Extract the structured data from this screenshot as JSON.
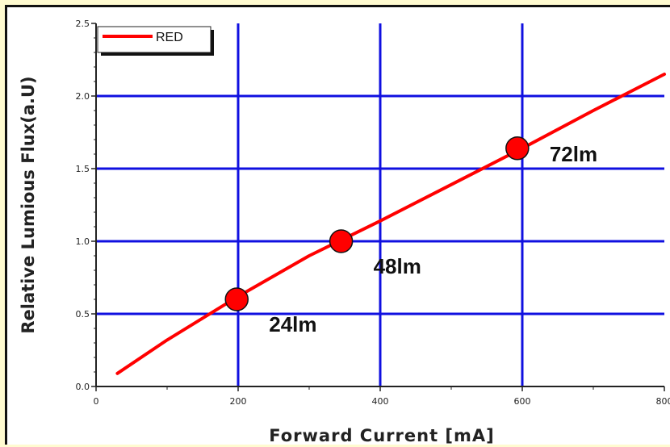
{
  "chart_data": {
    "type": "line",
    "xlabel": "Forward Current [mA]",
    "ylabel": "Relative Lumious Flux(a.U)",
    "xlim": [
      0,
      800
    ],
    "ylim": [
      0.0,
      2.5
    ],
    "xticks": [
      0,
      200,
      400,
      600,
      800
    ],
    "yticks": [
      0.0,
      0.5,
      1.0,
      1.5,
      2.0,
      2.5
    ],
    "xtick_labels": [
      "0",
      "200",
      "400",
      "600",
      "800"
    ],
    "ytick_labels": [
      "0.0",
      "0.5",
      "1.0",
      "1.5",
      "2.0",
      "2.5"
    ],
    "grid": true,
    "legend": "top-left",
    "series": [
      {
        "name": "RED",
        "color": "#ff0000",
        "x": [
          30,
          100,
          200,
          300,
          350,
          400,
          500,
          600,
          700,
          800
        ],
        "y": [
          0.09,
          0.32,
          0.62,
          0.9,
          1.02,
          1.14,
          1.39,
          1.64,
          1.9,
          2.15
        ]
      }
    ],
    "markers": [
      {
        "x": 198,
        "y": 0.6,
        "label": "24lm"
      },
      {
        "x": 345,
        "y": 1.0,
        "label": "48lm"
      },
      {
        "x": 593,
        "y": 1.64,
        "label": "72lm"
      }
    ],
    "grid_color": "#1010e0",
    "marker_color": "#ff0000"
  }
}
